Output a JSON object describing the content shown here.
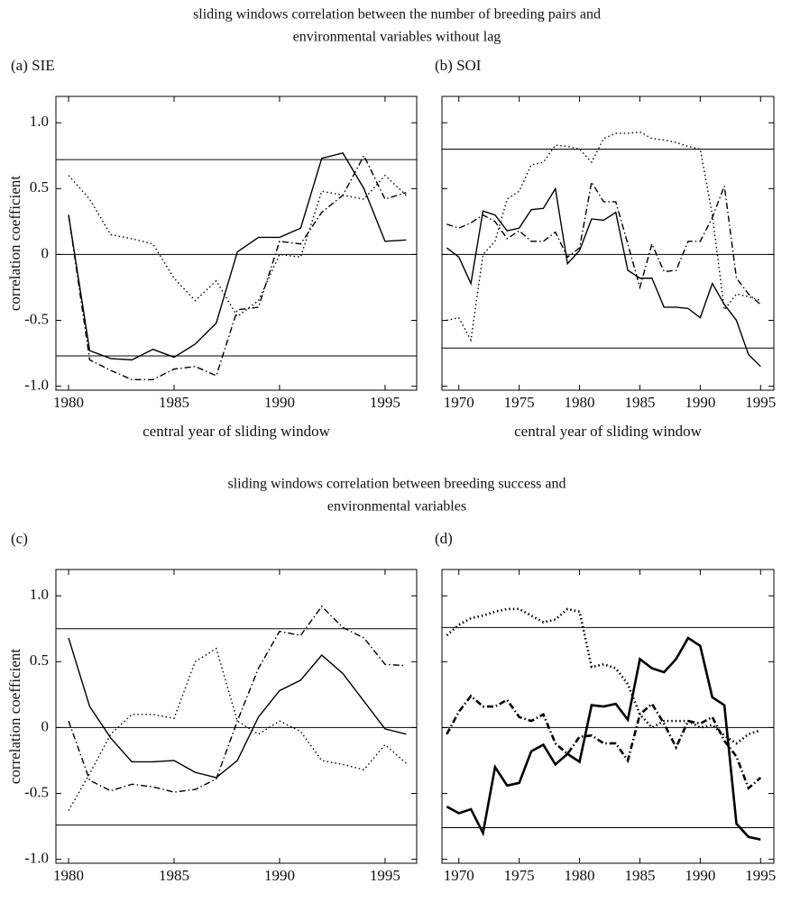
{
  "headings": [
    [
      "sliding windows correlation between the number of breeding pairs and",
      "environmental variables without lag"
    ],
    [
      "sliding windows correlation between breeding success and",
      "environmental variables"
    ]
  ],
  "chart_data": [
    {
      "type": "line",
      "title": "(a) SIE",
      "xlabel": "central year of sliding window",
      "ylabel": "correlation coefficient",
      "x": [
        1980,
        1981,
        1982,
        1983,
        1984,
        1985,
        1986,
        1987,
        1988,
        1989,
        1990,
        1991,
        1992,
        1993,
        1994,
        1995,
        1996
      ],
      "xlim": [
        1979.4,
        1996.5
      ],
      "xticks": [
        1980,
        1985,
        1990,
        1995
      ],
      "ylim": [
        -1.03,
        1.2
      ],
      "yticks": [
        {
          "value": -1,
          "label": "-1.0"
        },
        -0.5,
        0,
        0.5,
        {
          "value": 1,
          "label": "1.0"
        }
      ],
      "ytick_labels": true,
      "hlines": [
        0.72,
        0,
        -0.77
      ],
      "series": [
        {
          "color": "#000000",
          "dash": "solid",
          "width": 1.4,
          "values": [
            0.3,
            -0.73,
            -0.79,
            -0.8,
            -0.72,
            -0.78,
            -0.68,
            -0.52,
            0.02,
            0.13,
            0.13,
            0.2,
            0.73,
            0.77,
            0.5,
            0.1,
            0.11
          ]
        },
        {
          "color": "#000000",
          "dash": "dotted",
          "width": 1.4,
          "values": [
            0.6,
            0.42,
            0.15,
            0.12,
            0.08,
            -0.18,
            -0.35,
            -0.2,
            -0.47,
            -0.35,
            0.0,
            -0.02,
            0.48,
            0.45,
            0.42,
            0.6,
            0.45
          ]
        },
        {
          "color": "#000000",
          "dash": "dashdot",
          "width": 1.4,
          "values": [
            0.3,
            -0.8,
            -0.88,
            -0.95,
            -0.95,
            -0.87,
            -0.85,
            -0.92,
            -0.42,
            -0.4,
            0.1,
            0.08,
            0.32,
            0.45,
            0.75,
            0.42,
            0.47
          ]
        }
      ]
    },
    {
      "type": "line",
      "title": "(b) SOI",
      "xlabel": "central year of sliding window",
      "x": [
        1969,
        1970,
        1971,
        1972,
        1973,
        1974,
        1975,
        1976,
        1977,
        1978,
        1979,
        1980,
        1981,
        1982,
        1983,
        1984,
        1985,
        1986,
        1987,
        1988,
        1989,
        1990,
        1991,
        1992,
        1993,
        1994,
        1995
      ],
      "xlim": [
        1968.6,
        1996.1
      ],
      "xticks": [
        1970,
        1975,
        1980,
        1985,
        1990,
        1995
      ],
      "ylim": [
        -1.03,
        1.2
      ],
      "yticks": [
        -1,
        -0.5,
        0,
        0.5,
        1
      ],
      "ytick_labels": false,
      "hlines": [
        0.8,
        0,
        -0.71
      ],
      "series": [
        {
          "color": "#000000",
          "dash": "solid",
          "width": 1.4,
          "values": [
            0.05,
            -0.02,
            -0.22,
            0.33,
            0.3,
            0.18,
            0.2,
            0.34,
            0.35,
            0.5,
            -0.07,
            0.03,
            0.27,
            0.26,
            0.32,
            -0.12,
            -0.18,
            -0.18,
            -0.4,
            -0.4,
            -0.41,
            -0.48,
            -0.22,
            -0.38,
            -0.5,
            -0.76,
            -0.85
          ]
        },
        {
          "color": "#000000",
          "dash": "dotted",
          "width": 1.4,
          "values": [
            -0.5,
            -0.48,
            -0.65,
            0.0,
            0.1,
            0.42,
            0.48,
            0.68,
            0.7,
            0.83,
            0.82,
            0.8,
            0.7,
            0.88,
            0.92,
            0.92,
            0.93,
            0.88,
            0.87,
            0.85,
            0.82,
            0.8,
            0.3,
            -0.42,
            -0.3,
            -0.32,
            -0.35
          ]
        },
        {
          "color": "#000000",
          "dash": "dashdot",
          "width": 1.4,
          "values": [
            0.23,
            0.2,
            0.24,
            0.3,
            0.25,
            0.12,
            0.18,
            0.1,
            0.1,
            0.17,
            -0.02,
            0.05,
            0.55,
            0.4,
            0.4,
            0.08,
            -0.25,
            0.08,
            -0.13,
            -0.12,
            0.1,
            0.1,
            0.28,
            0.52,
            -0.18,
            -0.3,
            -0.38
          ]
        }
      ]
    },
    {
      "type": "line",
      "title": "(c)",
      "xlabel": "central year of sliding window",
      "ylabel": "correlation coefficient",
      "x": [
        1980,
        1981,
        1982,
        1983,
        1984,
        1985,
        1986,
        1987,
        1988,
        1989,
        1990,
        1991,
        1992,
        1993,
        1994,
        1995,
        1996
      ],
      "xlim": [
        1979.4,
        1996.5
      ],
      "xticks": [
        1980,
        1985,
        1990,
        1995
      ],
      "ylim": [
        -1.03,
        1.2
      ],
      "yticks": [
        {
          "value": -1,
          "label": "-1.0"
        },
        -0.5,
        0,
        0.5,
        {
          "value": 1,
          "label": "1.0"
        }
      ],
      "ytick_labels": true,
      "hlines": [
        0.75,
        0,
        -0.74
      ],
      "series": [
        {
          "color": "#000000",
          "dash": "solid",
          "width": 1.4,
          "values": [
            0.68,
            0.16,
            -0.08,
            -0.26,
            -0.26,
            -0.25,
            -0.34,
            -0.38,
            -0.25,
            0.08,
            0.28,
            0.36,
            0.55,
            0.41,
            0.2,
            -0.01,
            -0.05
          ]
        },
        {
          "color": "#000000",
          "dash": "dotted",
          "width": 1.4,
          "values": [
            -0.63,
            -0.35,
            -0.05,
            0.1,
            0.1,
            0.07,
            0.5,
            0.6,
            0.05,
            -0.05,
            0.05,
            -0.03,
            -0.25,
            -0.28,
            -0.32,
            -0.13,
            -0.27
          ]
        },
        {
          "color": "#000000",
          "dash": "dashdot",
          "width": 1.4,
          "values": [
            0.05,
            -0.4,
            -0.48,
            -0.43,
            -0.45,
            -0.49,
            -0.47,
            -0.39,
            0.05,
            0.45,
            0.73,
            0.7,
            0.92,
            0.76,
            0.68,
            0.48,
            0.47
          ]
        }
      ]
    },
    {
      "type": "line",
      "title": "(d)",
      "xlabel": "central year of sliding window",
      "x": [
        1969,
        1970,
        1971,
        1972,
        1973,
        1974,
        1975,
        1976,
        1977,
        1978,
        1979,
        1980,
        1981,
        1982,
        1983,
        1984,
        1985,
        1986,
        1987,
        1988,
        1989,
        1990,
        1991,
        1992,
        1993,
        1994,
        1995
      ],
      "xlim": [
        1968.6,
        1996.1
      ],
      "xticks": [
        1970,
        1975,
        1980,
        1985,
        1990,
        1995
      ],
      "ylim": [
        -1.03,
        1.2
      ],
      "yticks": [
        -1,
        -0.5,
        0,
        0.5,
        1
      ],
      "ytick_labels": false,
      "hlines": [
        0.76,
        0,
        -0.76
      ],
      "series": [
        {
          "color": "#000000",
          "dash": "solid",
          "width": 2.6,
          "values": [
            -0.6,
            -0.65,
            -0.62,
            -0.8,
            -0.3,
            -0.44,
            -0.42,
            -0.18,
            -0.13,
            -0.28,
            -0.2,
            -0.26,
            0.17,
            0.16,
            0.18,
            0.06,
            0.52,
            0.45,
            0.42,
            0.52,
            0.68,
            0.62,
            0.23,
            0.17,
            -0.73,
            -0.83,
            -0.85
          ]
        },
        {
          "color": "#000000",
          "dash": "dotted",
          "width": 2.6,
          "values": [
            0.7,
            0.78,
            0.83,
            0.85,
            0.88,
            0.9,
            0.9,
            0.85,
            0.8,
            0.82,
            0.9,
            0.88,
            0.46,
            0.48,
            0.45,
            0.33,
            0.1,
            0.0,
            0.05,
            0.05,
            0.05,
            0.0,
            0.02,
            -0.06,
            -0.12,
            -0.05,
            -0.02
          ]
        },
        {
          "color": "#000000",
          "dash": "dashdot",
          "width": 2.6,
          "values": [
            -0.05,
            0.12,
            0.24,
            0.16,
            0.16,
            0.21,
            0.08,
            0.05,
            0.1,
            -0.12,
            -0.2,
            -0.07,
            -0.06,
            -0.12,
            -0.12,
            -0.25,
            0.1,
            0.18,
            0.03,
            -0.15,
            0.05,
            0.03,
            0.08,
            -0.1,
            -0.22,
            -0.46,
            -0.38
          ]
        }
      ]
    }
  ]
}
